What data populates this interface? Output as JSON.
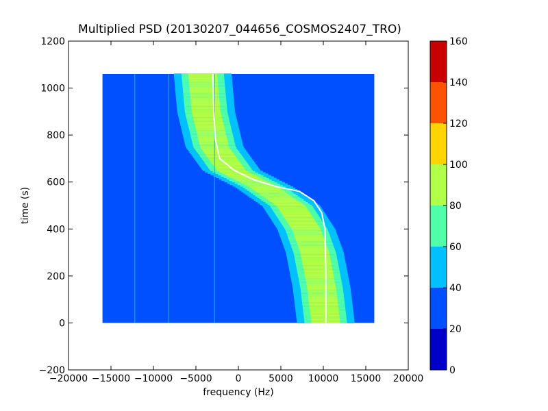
{
  "chart_data": {
    "type": "heatmap",
    "title": "Multiplied PSD (20130207_044656_COSMOS2407_TRO)",
    "xlabel": "frequency (Hz)",
    "ylabel": "time (s)",
    "xlim": [
      -20000,
      20000
    ],
    "ylim": [
      -200,
      1200
    ],
    "x_ticks": [
      -20000,
      -15000,
      -10000,
      -5000,
      0,
      5000,
      10000,
      15000,
      20000
    ],
    "x_tick_labels": [
      "−20000",
      "−15000",
      "−10000",
      "−5000",
      "0",
      "5000",
      "10000",
      "15000",
      "20000"
    ],
    "y_ticks": [
      -200,
      0,
      200,
      400,
      600,
      800,
      1000,
      1200
    ],
    "y_tick_labels": [
      "−200",
      "0",
      "200",
      "400",
      "600",
      "800",
      "1000",
      "1200"
    ],
    "data_extent": {
      "x": [
        -16000,
        16000
      ],
      "y": [
        0,
        1060
      ]
    },
    "background_level": 30,
    "main_band": {
      "description_points": [
        {
          "time": 1060,
          "frequency": -4200
        },
        {
          "time": 900,
          "frequency": -3800
        },
        {
          "time": 750,
          "frequency": -2800
        },
        {
          "time": 650,
          "frequency": -800
        },
        {
          "time": 580,
          "frequency": 3000
        },
        {
          "time": 500,
          "frequency": 6200
        },
        {
          "time": 400,
          "frequency": 8000
        },
        {
          "time": 300,
          "frequency": 9000
        },
        {
          "time": 150,
          "frequency": 9800
        },
        {
          "time": 0,
          "frequency": 10300
        }
      ],
      "peak_level": 90
    },
    "white_trace": [
      {
        "time": 1060,
        "frequency": -3000
      },
      {
        "time": 900,
        "frequency": -2900
      },
      {
        "time": 780,
        "frequency": -2700
      },
      {
        "time": 700,
        "frequency": -2200
      },
      {
        "time": 650,
        "frequency": -500
      },
      {
        "time": 610,
        "frequency": 1800
      },
      {
        "time": 580,
        "frequency": 4500
      },
      {
        "time": 560,
        "frequency": 7200
      },
      {
        "time": 520,
        "frequency": 8900
      },
      {
        "time": 470,
        "frequency": 9800
      },
      {
        "time": 400,
        "frequency": 10200
      },
      {
        "time": 200,
        "frequency": 10300
      },
      {
        "time": 0,
        "frequency": 10300
      }
    ],
    "vertical_lines_hz": [
      -12200,
      -8200,
      -2800
    ],
    "colorbar": {
      "levels": [
        0,
        20,
        40,
        60,
        80,
        100,
        120,
        140,
        160
      ],
      "tick_labels": [
        "0",
        "20",
        "40",
        "60",
        "80",
        "100",
        "120",
        "140",
        "160"
      ],
      "colors": [
        "#0000c8",
        "#0050ff",
        "#00c0ff",
        "#50ffa8",
        "#b0ff48",
        "#ffd400",
        "#ff5200",
        "#c80000"
      ]
    },
    "grid": false,
    "legend": "none"
  }
}
